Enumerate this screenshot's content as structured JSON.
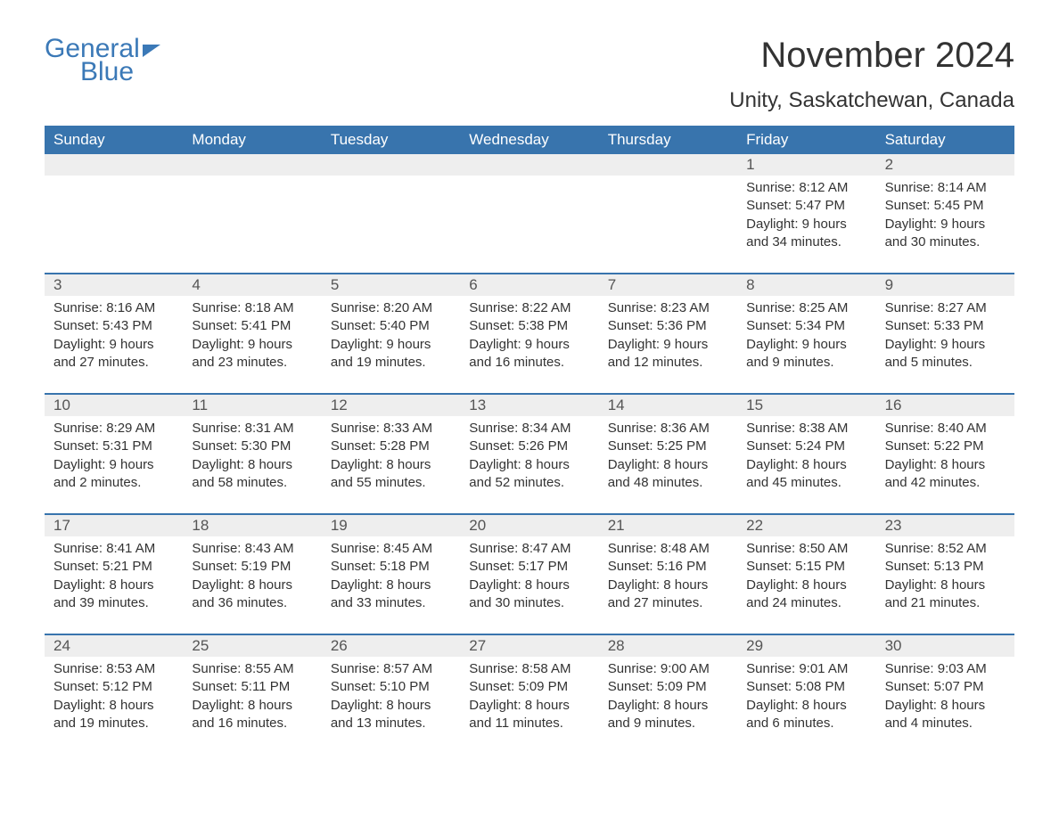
{
  "logo": {
    "word1": "General",
    "word2": "Blue"
  },
  "title": "November 2024",
  "location": "Unity, Saskatchewan, Canada",
  "colors": {
    "brand": "#3b79b7",
    "header_bg": "#3874ad",
    "header_text": "#ffffff",
    "daynum_bg": "#eeeeee",
    "body_text": "#333333",
    "rule": "#3874ad"
  },
  "day_names": [
    "Sunday",
    "Monday",
    "Tuesday",
    "Wednesday",
    "Thursday",
    "Friday",
    "Saturday"
  ],
  "weeks": [
    [
      {
        "n": "",
        "sunrise": "",
        "sunset": "",
        "d1": "",
        "d2": ""
      },
      {
        "n": "",
        "sunrise": "",
        "sunset": "",
        "d1": "",
        "d2": ""
      },
      {
        "n": "",
        "sunrise": "",
        "sunset": "",
        "d1": "",
        "d2": ""
      },
      {
        "n": "",
        "sunrise": "",
        "sunset": "",
        "d1": "",
        "d2": ""
      },
      {
        "n": "",
        "sunrise": "",
        "sunset": "",
        "d1": "",
        "d2": ""
      },
      {
        "n": "1",
        "sunrise": "Sunrise: 8:12 AM",
        "sunset": "Sunset: 5:47 PM",
        "d1": "Daylight: 9 hours",
        "d2": "and 34 minutes."
      },
      {
        "n": "2",
        "sunrise": "Sunrise: 8:14 AM",
        "sunset": "Sunset: 5:45 PM",
        "d1": "Daylight: 9 hours",
        "d2": "and 30 minutes."
      }
    ],
    [
      {
        "n": "3",
        "sunrise": "Sunrise: 8:16 AM",
        "sunset": "Sunset: 5:43 PM",
        "d1": "Daylight: 9 hours",
        "d2": "and 27 minutes."
      },
      {
        "n": "4",
        "sunrise": "Sunrise: 8:18 AM",
        "sunset": "Sunset: 5:41 PM",
        "d1": "Daylight: 9 hours",
        "d2": "and 23 minutes."
      },
      {
        "n": "5",
        "sunrise": "Sunrise: 8:20 AM",
        "sunset": "Sunset: 5:40 PM",
        "d1": "Daylight: 9 hours",
        "d2": "and 19 minutes."
      },
      {
        "n": "6",
        "sunrise": "Sunrise: 8:22 AM",
        "sunset": "Sunset: 5:38 PM",
        "d1": "Daylight: 9 hours",
        "d2": "and 16 minutes."
      },
      {
        "n": "7",
        "sunrise": "Sunrise: 8:23 AM",
        "sunset": "Sunset: 5:36 PM",
        "d1": "Daylight: 9 hours",
        "d2": "and 12 minutes."
      },
      {
        "n": "8",
        "sunrise": "Sunrise: 8:25 AM",
        "sunset": "Sunset: 5:34 PM",
        "d1": "Daylight: 9 hours",
        "d2": "and 9 minutes."
      },
      {
        "n": "9",
        "sunrise": "Sunrise: 8:27 AM",
        "sunset": "Sunset: 5:33 PM",
        "d1": "Daylight: 9 hours",
        "d2": "and 5 minutes."
      }
    ],
    [
      {
        "n": "10",
        "sunrise": "Sunrise: 8:29 AM",
        "sunset": "Sunset: 5:31 PM",
        "d1": "Daylight: 9 hours",
        "d2": "and 2 minutes."
      },
      {
        "n": "11",
        "sunrise": "Sunrise: 8:31 AM",
        "sunset": "Sunset: 5:30 PM",
        "d1": "Daylight: 8 hours",
        "d2": "and 58 minutes."
      },
      {
        "n": "12",
        "sunrise": "Sunrise: 8:33 AM",
        "sunset": "Sunset: 5:28 PM",
        "d1": "Daylight: 8 hours",
        "d2": "and 55 minutes."
      },
      {
        "n": "13",
        "sunrise": "Sunrise: 8:34 AM",
        "sunset": "Sunset: 5:26 PM",
        "d1": "Daylight: 8 hours",
        "d2": "and 52 minutes."
      },
      {
        "n": "14",
        "sunrise": "Sunrise: 8:36 AM",
        "sunset": "Sunset: 5:25 PM",
        "d1": "Daylight: 8 hours",
        "d2": "and 48 minutes."
      },
      {
        "n": "15",
        "sunrise": "Sunrise: 8:38 AM",
        "sunset": "Sunset: 5:24 PM",
        "d1": "Daylight: 8 hours",
        "d2": "and 45 minutes."
      },
      {
        "n": "16",
        "sunrise": "Sunrise: 8:40 AM",
        "sunset": "Sunset: 5:22 PM",
        "d1": "Daylight: 8 hours",
        "d2": "and 42 minutes."
      }
    ],
    [
      {
        "n": "17",
        "sunrise": "Sunrise: 8:41 AM",
        "sunset": "Sunset: 5:21 PM",
        "d1": "Daylight: 8 hours",
        "d2": "and 39 minutes."
      },
      {
        "n": "18",
        "sunrise": "Sunrise: 8:43 AM",
        "sunset": "Sunset: 5:19 PM",
        "d1": "Daylight: 8 hours",
        "d2": "and 36 minutes."
      },
      {
        "n": "19",
        "sunrise": "Sunrise: 8:45 AM",
        "sunset": "Sunset: 5:18 PM",
        "d1": "Daylight: 8 hours",
        "d2": "and 33 minutes."
      },
      {
        "n": "20",
        "sunrise": "Sunrise: 8:47 AM",
        "sunset": "Sunset: 5:17 PM",
        "d1": "Daylight: 8 hours",
        "d2": "and 30 minutes."
      },
      {
        "n": "21",
        "sunrise": "Sunrise: 8:48 AM",
        "sunset": "Sunset: 5:16 PM",
        "d1": "Daylight: 8 hours",
        "d2": "and 27 minutes."
      },
      {
        "n": "22",
        "sunrise": "Sunrise: 8:50 AM",
        "sunset": "Sunset: 5:15 PM",
        "d1": "Daylight: 8 hours",
        "d2": "and 24 minutes."
      },
      {
        "n": "23",
        "sunrise": "Sunrise: 8:52 AM",
        "sunset": "Sunset: 5:13 PM",
        "d1": "Daylight: 8 hours",
        "d2": "and 21 minutes."
      }
    ],
    [
      {
        "n": "24",
        "sunrise": "Sunrise: 8:53 AM",
        "sunset": "Sunset: 5:12 PM",
        "d1": "Daylight: 8 hours",
        "d2": "and 19 minutes."
      },
      {
        "n": "25",
        "sunrise": "Sunrise: 8:55 AM",
        "sunset": "Sunset: 5:11 PM",
        "d1": "Daylight: 8 hours",
        "d2": "and 16 minutes."
      },
      {
        "n": "26",
        "sunrise": "Sunrise: 8:57 AM",
        "sunset": "Sunset: 5:10 PM",
        "d1": "Daylight: 8 hours",
        "d2": "and 13 minutes."
      },
      {
        "n": "27",
        "sunrise": "Sunrise: 8:58 AM",
        "sunset": "Sunset: 5:09 PM",
        "d1": "Daylight: 8 hours",
        "d2": "and 11 minutes."
      },
      {
        "n": "28",
        "sunrise": "Sunrise: 9:00 AM",
        "sunset": "Sunset: 5:09 PM",
        "d1": "Daylight: 8 hours",
        "d2": "and 9 minutes."
      },
      {
        "n": "29",
        "sunrise": "Sunrise: 9:01 AM",
        "sunset": "Sunset: 5:08 PM",
        "d1": "Daylight: 8 hours",
        "d2": "and 6 minutes."
      },
      {
        "n": "30",
        "sunrise": "Sunrise: 9:03 AM",
        "sunset": "Sunset: 5:07 PM",
        "d1": "Daylight: 8 hours",
        "d2": "and 4 minutes."
      }
    ]
  ]
}
